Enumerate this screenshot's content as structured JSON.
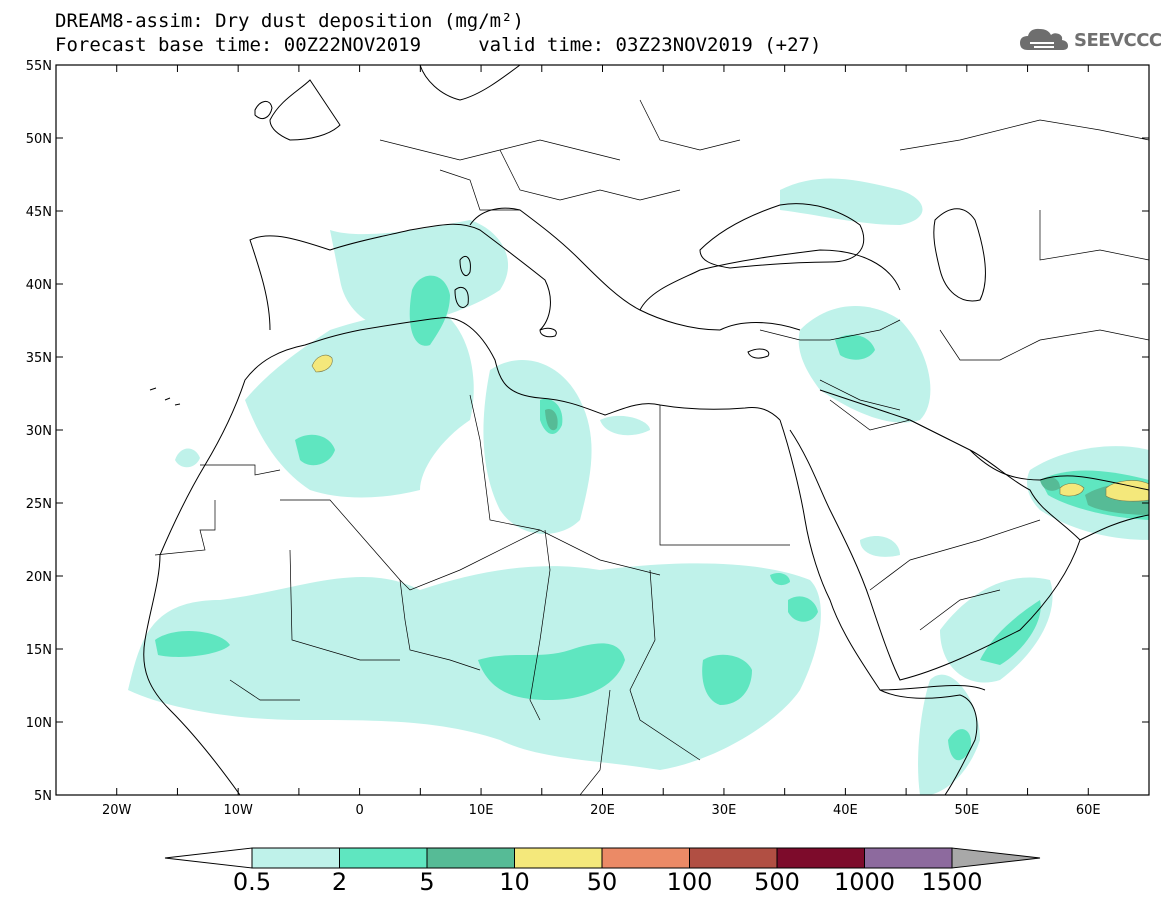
{
  "title": {
    "line1": "DREAM8-assim: Dry dust deposition (mg/m²)",
    "line2": "Forecast base time: 00Z22NOV2019     valid time: 03Z23NOV2019 (+27)"
  },
  "logo": {
    "text": "SEEVCCC",
    "icon": "cloud-icon"
  },
  "map": {
    "lon_range": [
      -25,
      65
    ],
    "lat_range": [
      5,
      55
    ],
    "lat_ticks": [
      "55N",
      "50N",
      "45N",
      "40N",
      "35N",
      "30N",
      "25N",
      "20N",
      "15N",
      "10N",
      "5N"
    ],
    "lon_ticks": [
      "20W",
      "10W",
      "0",
      "10E",
      "20E",
      "30E",
      "40E",
      "50E",
      "60E"
    ]
  },
  "colorbar": {
    "labels": [
      "0.5",
      "2",
      "5",
      "10",
      "50",
      "100",
      "500",
      "1000",
      "1500"
    ],
    "colors": [
      "#bff2ea",
      "#5fe6c0",
      "#56bb96",
      "#f4e87b",
      "#eb8a66",
      "#b14f43",
      "#7d0b2b",
      "#8d6a9e"
    ],
    "under_color": "#ffffff",
    "over_color": "#a8a8a8"
  }
}
